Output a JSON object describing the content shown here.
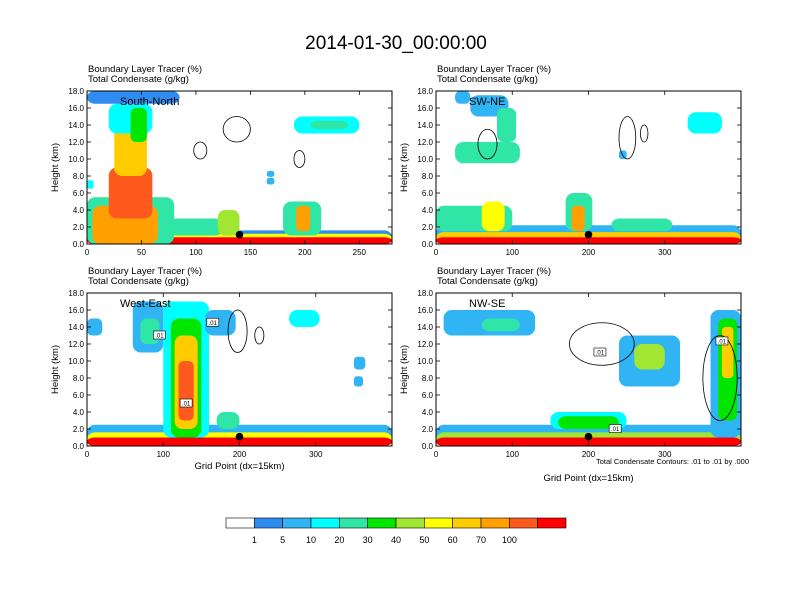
{
  "figure": {
    "title": "2014-01-30_00:00:00",
    "header_line1": "Boundary Layer Tracer    (%)",
    "header_line2": "Total Condensate   (g/kg)",
    "ylabel": "Height (km)",
    "xlabel": "Grid Point (dx=15km)",
    "footnote": "Total Condensate Contours: .01 to .01 by .000"
  },
  "colors": {
    "levels": [
      "#ffffff",
      "#2f8cf0",
      "#30b4f4",
      "#00ffff",
      "#30e6a6",
      "#00e600",
      "#a0e632",
      "#ffff00",
      "#ffcc00",
      "#ffa000",
      "#ff5a1e",
      "#ff0000"
    ]
  },
  "colorbar": {
    "labels": [
      "1",
      "5",
      "10",
      "20",
      "30",
      "40",
      "50",
      "60",
      "70",
      "100"
    ]
  },
  "chart_data": [
    {
      "type": "heatmap",
      "panel": "South-North",
      "title_lines": [
        "Boundary Layer Tracer    (%)",
        "Total Condensate   (g/kg)"
      ],
      "ylabel": "Height (km)",
      "xlabel": "",
      "xlim": [
        0,
        280
      ],
      "ylim": [
        0,
        18
      ],
      "xticks": [
        "0",
        "50",
        "100",
        "150",
        "200",
        "250"
      ],
      "yticks": [
        "0.0",
        "2.0",
        "4.0",
        "6.0",
        "8.0",
        "10.0",
        "12.0",
        "14.0",
        "16.0",
        "18.0"
      ],
      "marker": {
        "x": 140,
        "y": 1.1
      },
      "contour_labels": [],
      "features": [
        {
          "x0": 0,
          "x1": 280,
          "y0": 0,
          "y1": 1.6,
          "level": 1
        },
        {
          "x0": 0,
          "x1": 280,
          "y0": 0,
          "y1": 1.2,
          "level": 7
        },
        {
          "x0": 0,
          "x1": 280,
          "y0": 0,
          "y1": 0.8,
          "level": 11
        },
        {
          "x0": 0,
          "x1": 80,
          "y0": 0,
          "y1": 5.5,
          "level": 4
        },
        {
          "x0": 5,
          "x1": 65,
          "y0": 0,
          "y1": 4.5,
          "level": 9
        },
        {
          "x0": 20,
          "x1": 60,
          "y0": 3,
          "y1": 9,
          "level": 10
        },
        {
          "x0": 25,
          "x1": 55,
          "y0": 8,
          "y1": 14,
          "level": 8
        },
        {
          "x0": 20,
          "x1": 60,
          "y0": 13,
          "y1": 16.5,
          "level": 3
        },
        {
          "x0": 0,
          "x1": 85,
          "y0": 16.5,
          "y1": 18,
          "level": 1
        },
        {
          "x0": 40,
          "x1": 55,
          "y0": 12,
          "y1": 16,
          "level": 5
        },
        {
          "x0": 75,
          "x1": 125,
          "y0": 1,
          "y1": 3,
          "level": 4
        },
        {
          "x0": 120,
          "x1": 140,
          "y0": 1,
          "y1": 4,
          "level": 6
        },
        {
          "x0": 180,
          "x1": 215,
          "y0": 1,
          "y1": 5,
          "level": 4
        },
        {
          "x0": 192,
          "x1": 205,
          "y0": 1.5,
          "y1": 4.5,
          "level": 9
        },
        {
          "x0": 190,
          "x1": 250,
          "y0": 13,
          "y1": 15,
          "level": 3
        },
        {
          "x0": 205,
          "x1": 240,
          "y0": 13.5,
          "y1": 14.5,
          "level": 4
        },
        {
          "x0": 165,
          "x1": 172,
          "y0": 7,
          "y1": 7.8,
          "level": 2
        },
        {
          "x0": 165,
          "x1": 172,
          "y0": 7.9,
          "y1": 8.6,
          "level": 2
        },
        {
          "x0": 0,
          "x1": 6,
          "y0": 6.5,
          "y1": 7.5,
          "level": 3
        }
      ],
      "outlines": [
        {
          "x0": 125,
          "x1": 150,
          "y0": 12,
          "y1": 15
        },
        {
          "x0": 98,
          "x1": 110,
          "y0": 10,
          "y1": 12
        },
        {
          "x0": 190,
          "x1": 200,
          "y0": 9,
          "y1": 11
        }
      ]
    },
    {
      "type": "heatmap",
      "panel": "SW-NE",
      "title_lines": [
        "Boundary Layer Tracer    (%)",
        "Total Condensate   (g/kg)"
      ],
      "ylabel": "Height (km)",
      "xlabel": "",
      "xlim": [
        0,
        400
      ],
      "ylim": [
        0,
        18
      ],
      "xticks": [
        "0",
        "100",
        "200",
        "300"
      ],
      "yticks": [
        "0.0",
        "2.0",
        "4.0",
        "6.0",
        "8.0",
        "10.0",
        "12.0",
        "14.0",
        "16.0",
        "18.0"
      ],
      "marker": {
        "x": 200,
        "y": 1.1
      },
      "contour_labels": [],
      "features": [
        {
          "x0": 0,
          "x1": 400,
          "y0": 0,
          "y1": 2.2,
          "level": 2
        },
        {
          "x0": 0,
          "x1": 400,
          "y0": 0,
          "y1": 1.4,
          "level": 8
        },
        {
          "x0": 0,
          "x1": 400,
          "y0": 0,
          "y1": 0.8,
          "level": 11
        },
        {
          "x0": 0,
          "x1": 100,
          "y0": 1.5,
          "y1": 4.5,
          "level": 4
        },
        {
          "x0": 60,
          "x1": 90,
          "y0": 1.5,
          "y1": 5,
          "level": 7
        },
        {
          "x0": 170,
          "x1": 205,
          "y0": 1.5,
          "y1": 6,
          "level": 4
        },
        {
          "x0": 178,
          "x1": 195,
          "y0": 1.5,
          "y1": 4.5,
          "level": 9
        },
        {
          "x0": 230,
          "x1": 310,
          "y0": 1.5,
          "y1": 3,
          "level": 4
        },
        {
          "x0": 25,
          "x1": 110,
          "y0": 9.5,
          "y1": 12,
          "level": 4
        },
        {
          "x0": 45,
          "x1": 95,
          "y0": 15,
          "y1": 17.5,
          "level": 2
        },
        {
          "x0": 80,
          "x1": 105,
          "y0": 12,
          "y1": 16,
          "level": 4
        },
        {
          "x0": 25,
          "x1": 45,
          "y0": 16.5,
          "y1": 18,
          "level": 2
        },
        {
          "x0": 330,
          "x1": 375,
          "y0": 13,
          "y1": 15.5,
          "level": 3
        },
        {
          "x0": 240,
          "x1": 250,
          "y0": 10,
          "y1": 11,
          "level": 2
        }
      ],
      "outlines": [
        {
          "x0": 55,
          "x1": 80,
          "y0": 10,
          "y1": 13.5
        },
        {
          "x0": 240,
          "x1": 262,
          "y0": 10,
          "y1": 15
        },
        {
          "x0": 268,
          "x1": 278,
          "y0": 12,
          "y1": 14
        }
      ]
    },
    {
      "type": "heatmap",
      "panel": "West-East",
      "title_lines": [
        "Boundary Layer Tracer    (%)",
        "Total Condensate   (g/kg)"
      ],
      "ylabel": "Height (km)",
      "xlabel": "Grid Point (dx=15km)",
      "xlim": [
        0,
        400
      ],
      "ylim": [
        0,
        18
      ],
      "xticks": [
        "0",
        "100",
        "200",
        "300"
      ],
      "yticks": [
        "0.0",
        "2.0",
        "4.0",
        "6.0",
        "8.0",
        "10.0",
        "12.0",
        "14.0",
        "16.0",
        "18.0"
      ],
      "marker": {
        "x": 200,
        "y": 1.1
      },
      "contour_labels": [
        {
          "x": 95,
          "y": 13,
          "text": ".01"
        },
        {
          "x": 165,
          "y": 14.5,
          "text": ".01"
        },
        {
          "x": 130,
          "y": 5,
          "text": ".01"
        }
      ],
      "features": [
        {
          "x0": 0,
          "x1": 400,
          "y0": 0,
          "y1": 2.5,
          "level": 2
        },
        {
          "x0": 0,
          "x1": 400,
          "y0": 0,
          "y1": 1.6,
          "level": 7
        },
        {
          "x0": 0,
          "x1": 400,
          "y0": 0,
          "y1": 1.0,
          "level": 11
        },
        {
          "x0": 100,
          "x1": 160,
          "y0": 1,
          "y1": 17,
          "level": 3
        },
        {
          "x0": 110,
          "x1": 150,
          "y0": 1,
          "y1": 15,
          "level": 5
        },
        {
          "x0": 115,
          "x1": 145,
          "y0": 2,
          "y1": 13,
          "level": 8
        },
        {
          "x0": 120,
          "x1": 140,
          "y0": 3,
          "y1": 10,
          "level": 10
        },
        {
          "x0": 0,
          "x1": 20,
          "y0": 13,
          "y1": 15,
          "level": 2
        },
        {
          "x0": 60,
          "x1": 100,
          "y0": 11,
          "y1": 17,
          "level": 2
        },
        {
          "x0": 70,
          "x1": 95,
          "y0": 12,
          "y1": 15,
          "level": 4
        },
        {
          "x0": 155,
          "x1": 195,
          "y0": 13,
          "y1": 16,
          "level": 2
        },
        {
          "x0": 265,
          "x1": 305,
          "y0": 14,
          "y1": 16,
          "level": 3
        },
        {
          "x0": 170,
          "x1": 200,
          "y0": 2,
          "y1": 4,
          "level": 4
        },
        {
          "x0": 350,
          "x1": 365,
          "y0": 9,
          "y1": 10.5,
          "level": 2
        },
        {
          "x0": 350,
          "x1": 362,
          "y0": 7,
          "y1": 8.2,
          "level": 2
        }
      ],
      "outlines": [
        {
          "x0": 185,
          "x1": 210,
          "y0": 11,
          "y1": 16
        },
        {
          "x0": 220,
          "x1": 232,
          "y0": 12,
          "y1": 14
        }
      ]
    },
    {
      "type": "heatmap",
      "panel": "NW-SE",
      "title_lines": [
        "Boundary Layer Tracer    (%)",
        "Total Condensate   (g/kg)"
      ],
      "ylabel": "Height (km)",
      "xlabel": "Grid Point (dx=15km)",
      "xlim": [
        0,
        400
      ],
      "ylim": [
        0,
        18
      ],
      "xticks": [
        "0",
        "100",
        "200",
        "300"
      ],
      "yticks": [
        "0.0",
        "2.0",
        "4.0",
        "6.0",
        "8.0",
        "10.0",
        "12.0",
        "14.0",
        "16.0",
        "18.0"
      ],
      "marker": {
        "x": 200,
        "y": 1.1
      },
      "contour_labels": [
        {
          "x": 215,
          "y": 11,
          "text": ".01"
        },
        {
          "x": 235,
          "y": 2,
          "text": ".01"
        },
        {
          "x": 375,
          "y": 12.3,
          "text": ".01"
        }
      ],
      "features": [
        {
          "x0": 0,
          "x1": 400,
          "y0": 0,
          "y1": 2.5,
          "level": 2
        },
        {
          "x0": 0,
          "x1": 400,
          "y0": 0,
          "y1": 1.6,
          "level": 6
        },
        {
          "x0": 0,
          "x1": 400,
          "y0": 0,
          "y1": 1.0,
          "level": 11
        },
        {
          "x0": 150,
          "x1": 250,
          "y0": 2,
          "y1": 4,
          "level": 3
        },
        {
          "x0": 160,
          "x1": 240,
          "y0": 2,
          "y1": 3.5,
          "level": 5
        },
        {
          "x0": 10,
          "x1": 130,
          "y0": 13,
          "y1": 16,
          "level": 2
        },
        {
          "x0": 60,
          "x1": 110,
          "y0": 13.5,
          "y1": 15,
          "level": 4
        },
        {
          "x0": 240,
          "x1": 320,
          "y0": 7,
          "y1": 13,
          "level": 2
        },
        {
          "x0": 260,
          "x1": 300,
          "y0": 9,
          "y1": 12,
          "level": 6
        },
        {
          "x0": 360,
          "x1": 400,
          "y0": 1,
          "y1": 16,
          "level": 2
        },
        {
          "x0": 370,
          "x1": 395,
          "y0": 3,
          "y1": 15,
          "level": 5
        },
        {
          "x0": 375,
          "x1": 390,
          "y0": 8,
          "y1": 14,
          "level": 8
        }
      ],
      "outlines": [
        {
          "x0": 175,
          "x1": 260,
          "y0": 9.5,
          "y1": 14.5
        },
        {
          "x0": 350,
          "x1": 395,
          "y0": 3,
          "y1": 13
        }
      ]
    }
  ]
}
